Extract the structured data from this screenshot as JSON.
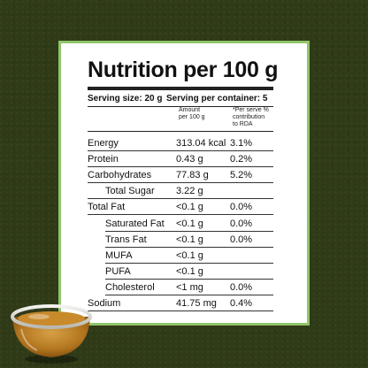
{
  "title": "Nutrition per 100 g",
  "serving_size": "Serving size: 20 g",
  "serving_per_container": "Serving per container: 5",
  "col_amount": [
    "Amount",
    "per 100 g"
  ],
  "col_rda": [
    "*Per serve %",
    "contribution",
    "to RDA"
  ],
  "rows": [
    {
      "label": "Energy",
      "amount": "313.04 kcal",
      "rda": "3.1%",
      "indent": false
    },
    {
      "label": "Protein",
      "amount": "0.43 g",
      "rda": "0.2%",
      "indent": false
    },
    {
      "label": "Carbohydrates",
      "amount": "77.83 g",
      "rda": "5.2%",
      "indent": false
    },
    {
      "label": "Total Sugar",
      "amount": "3.22 g",
      "rda": "",
      "indent": true
    },
    {
      "label": "Total Fat",
      "amount": "<0.1 g",
      "rda": "0.0%",
      "indent": false
    },
    {
      "label": "Saturated Fat",
      "amount": "<0.1 g",
      "rda": "0.0%",
      "indent": true
    },
    {
      "label": "Trans Fat",
      "amount": "<0.1 g",
      "rda": "0.0%",
      "indent": true
    },
    {
      "label": "MUFA",
      "amount": "<0.1 g",
      "rda": "",
      "indent": true
    },
    {
      "label": "PUFA",
      "amount": "<0.1 g",
      "rda": "",
      "indent": true
    },
    {
      "label": "Cholesterol",
      "amount": "<1 mg",
      "rda": "0.0%",
      "indent": true
    },
    {
      "label": "Sodium",
      "amount": "41.75 mg",
      "rda": "0.4%",
      "indent": false
    }
  ],
  "colors": {
    "background": "#2f3a17",
    "border": "#8fc46a",
    "honey": "#b8771e"
  }
}
